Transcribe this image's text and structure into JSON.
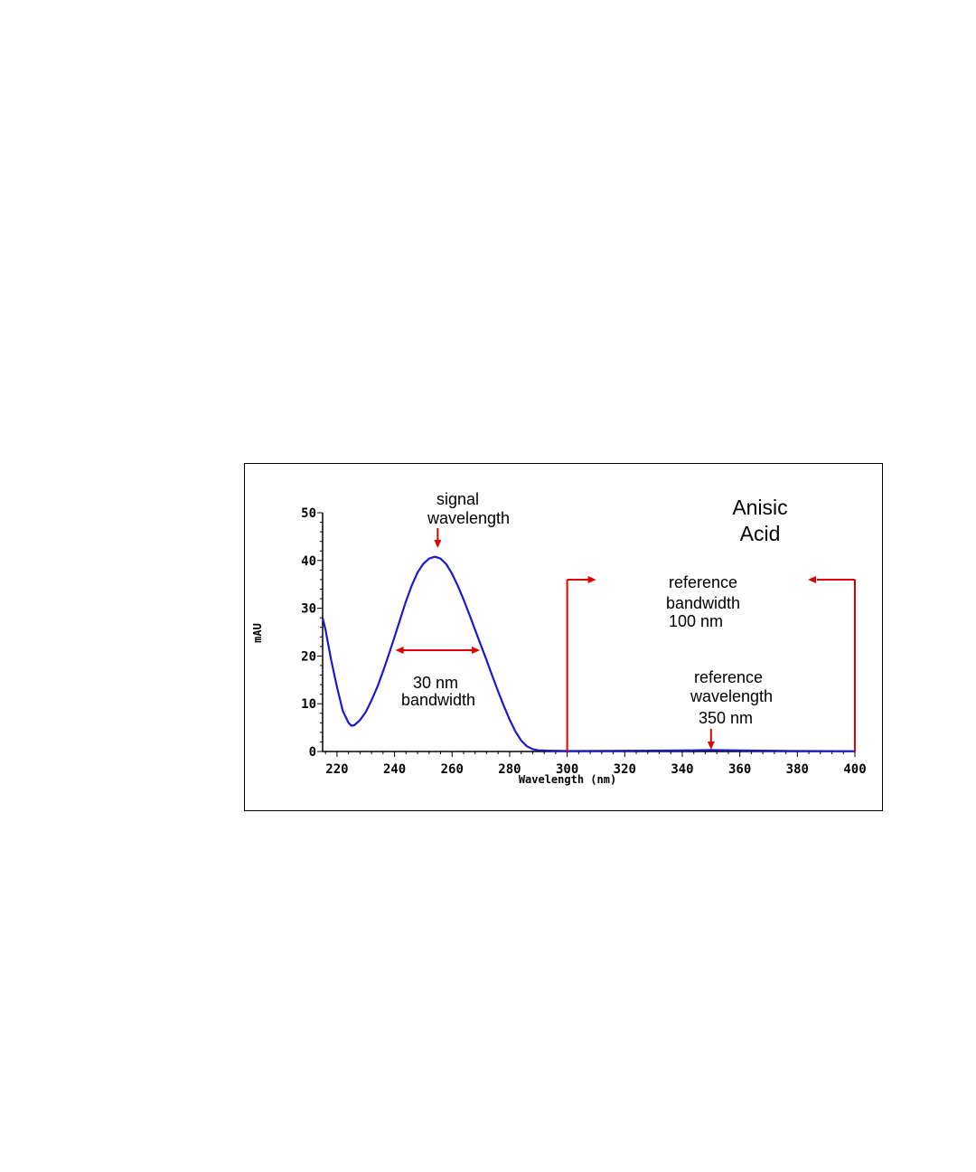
{
  "chart_data": {
    "type": "line",
    "title": "Anisic Acid",
    "title_lines": [
      "Anisic",
      "Acid"
    ],
    "xlabel": "Wavelength (nm)",
    "ylabel": "mAU",
    "xlim": [
      215,
      400
    ],
    "ylim": [
      0,
      50
    ],
    "x_ticks": [
      220,
      240,
      260,
      280,
      300,
      320,
      340,
      360,
      380,
      400
    ],
    "y_ticks": [
      0,
      10,
      20,
      30,
      40,
      50
    ],
    "grid": false,
    "series": [
      {
        "color": "#1a1acc",
        "points": [
          [
            215,
            28
          ],
          [
            216,
            25.5
          ],
          [
            218,
            19
          ],
          [
            220,
            13.5
          ],
          [
            222,
            8.5
          ],
          [
            224,
            6
          ],
          [
            225,
            5.4
          ],
          [
            226,
            5.5
          ],
          [
            228,
            6.6
          ],
          [
            230,
            8.3
          ],
          [
            232,
            10.7
          ],
          [
            234,
            13.5
          ],
          [
            236,
            16.8
          ],
          [
            238,
            20.3
          ],
          [
            240,
            24
          ],
          [
            242,
            27.8
          ],
          [
            244,
            31.5
          ],
          [
            246,
            34.8
          ],
          [
            248,
            37.5
          ],
          [
            250,
            39.3
          ],
          [
            252,
            40.4
          ],
          [
            254,
            40.8
          ],
          [
            256,
            40.4
          ],
          [
            258,
            39.2
          ],
          [
            260,
            37.2
          ],
          [
            262,
            34.7
          ],
          [
            264,
            31.8
          ],
          [
            266,
            28.7
          ],
          [
            268,
            25.5
          ],
          [
            270,
            22.3
          ],
          [
            272,
            19.1
          ],
          [
            274,
            15.8
          ],
          [
            276,
            12.6
          ],
          [
            278,
            9.5
          ],
          [
            280,
            6.7
          ],
          [
            282,
            4.2
          ],
          [
            284,
            2.3
          ],
          [
            286,
            1.1
          ],
          [
            288,
            0.5
          ],
          [
            290,
            0.25
          ],
          [
            295,
            0.15
          ],
          [
            300,
            0.1
          ],
          [
            320,
            0.15
          ],
          [
            340,
            0.2
          ],
          [
            350,
            0.3
          ],
          [
            360,
            0.2
          ],
          [
            380,
            0.1
          ],
          [
            400,
            0.05
          ]
        ]
      }
    ],
    "annotations": {
      "signal": {
        "lines": [
          "signal",
          "wavelength"
        ],
        "x": 255
      },
      "bandwidth": {
        "lines": [
          "30 nm",
          "bandwidth"
        ],
        "x_range": [
          240,
          270
        ]
      },
      "reference_bandwidth": {
        "lines": [
          "reference",
          "bandwidth",
          "100 nm"
        ],
        "x_range": [
          300,
          400
        ]
      },
      "reference_wavelength": {
        "lines": [
          "reference",
          "wavelength",
          "350 nm"
        ],
        "x": 350
      }
    },
    "colors": {
      "curve": "#1a1acc",
      "annotation": "#e00000",
      "axis": "#000000"
    }
  }
}
